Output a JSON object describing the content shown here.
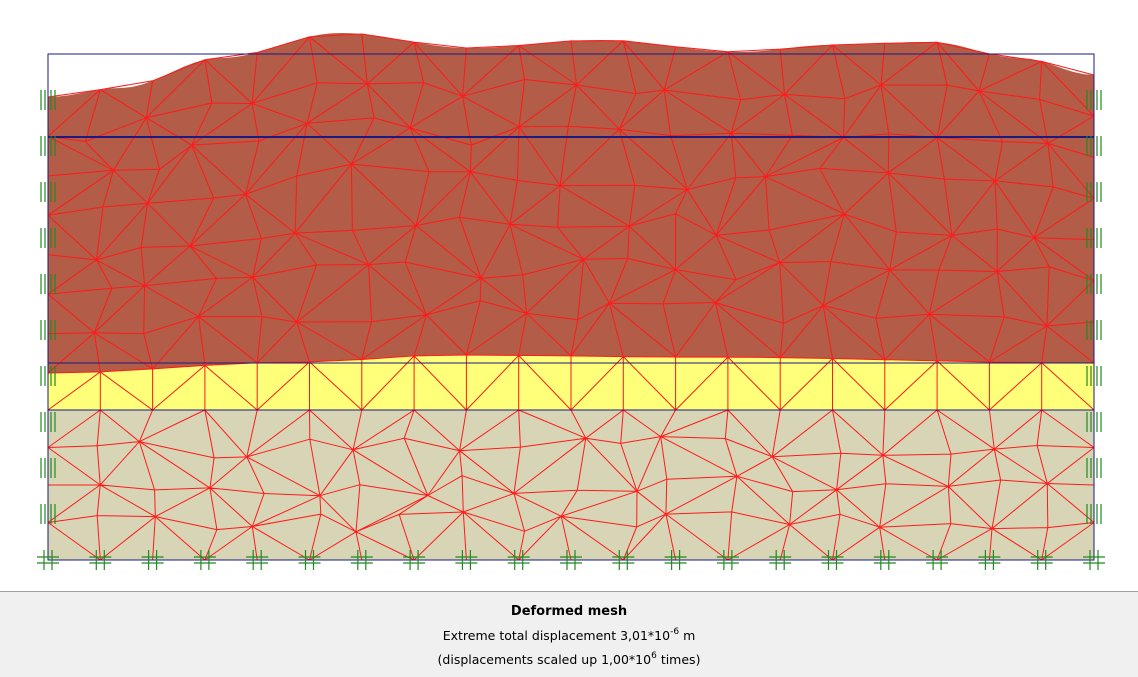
{
  "caption": {
    "title": "Deformed mesh",
    "line1": {
      "text": "Extreme total displacement 3,01*10",
      "exponent": "-6",
      "unit": "m"
    },
    "line2": {
      "text": "(displacements scaled up 1,00*10",
      "exponent": "6",
      "unit": "times)"
    }
  }
}
